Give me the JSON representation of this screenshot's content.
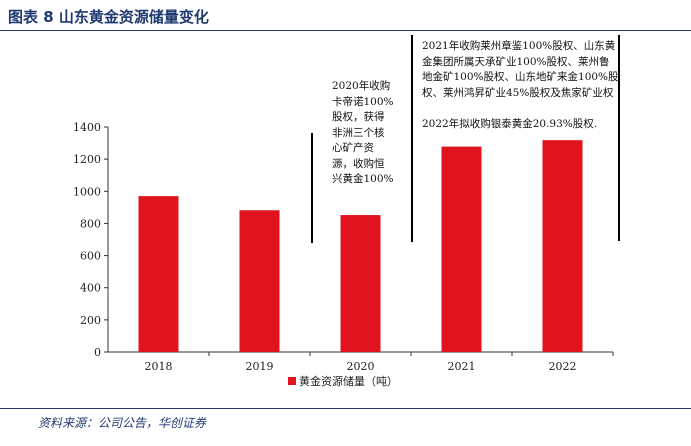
{
  "title": "图表 8  山东黄金资源储量变化",
  "source": "资料来源：公司公告，华创证券",
  "annotations": [
    {
      "text": "2020年收购卡帝诺100%股权，获得非洲三个核心矿产资源，收购恒兴黄金100%"
    },
    {
      "text": "2021年收购莱州章鉴100%股权、山东黄金集团所属天承矿业100%股权、莱州鲁地金矿100%股权、山东地矿来金100%股权、莱州鸿昇矿业45%股权及焦家矿业权"
    },
    {
      "text": "2022年拟收购银泰黄金20.93%股权."
    }
  ],
  "chart_data": {
    "type": "bar",
    "categories": [
      "2018",
      "2019",
      "2020",
      "2021",
      "2022"
    ],
    "series": [
      {
        "name": "黄金资源储量（吨）",
        "values": [
          970,
          882,
          852,
          1278,
          1318
        ],
        "color": "#e0141e"
      }
    ],
    "ylim": [
      0,
      1400
    ],
    "yticks": [
      0,
      200,
      400,
      600,
      800,
      1000,
      1200,
      1400
    ],
    "grid": false,
    "legend": "bottom-center"
  }
}
